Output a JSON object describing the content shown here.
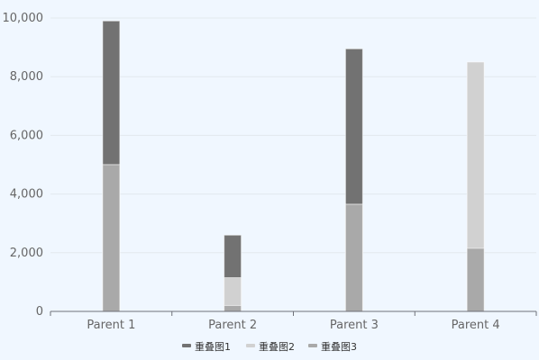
{
  "chart_data": {
    "type": "bar",
    "stacked": false,
    "overlapping": true,
    "categories": [
      "Parent 1",
      "Parent 2",
      "Parent 3",
      "Parent 4"
    ],
    "series": [
      {
        "name": "重叠图1",
        "values": [
          9900,
          2600,
          8950,
          2150
        ],
        "color": "#727272"
      },
      {
        "name": "重叠图2",
        "values": [
          5000,
          1150,
          3650,
          8500
        ],
        "color": "#d1d1d1"
      },
      {
        "name": "重叠图3",
        "values": [
          5000,
          200,
          3650,
          2150
        ],
        "color": "#a9a9a9"
      }
    ],
    "ylim": [
      0,
      10000
    ],
    "yticks": [
      0,
      2000,
      4000,
      6000,
      8000,
      10000
    ],
    "ytick_labels": [
      "0",
      "2,000",
      "4,000",
      "6,000",
      "8,000",
      "10,000"
    ],
    "grid": true,
    "legend_position": "bottom",
    "title": "",
    "xlabel": "",
    "ylabel": ""
  },
  "colors": {
    "background": "#f0f7ff",
    "grid": "#e2e8ee",
    "axis": "#6e7079"
  }
}
